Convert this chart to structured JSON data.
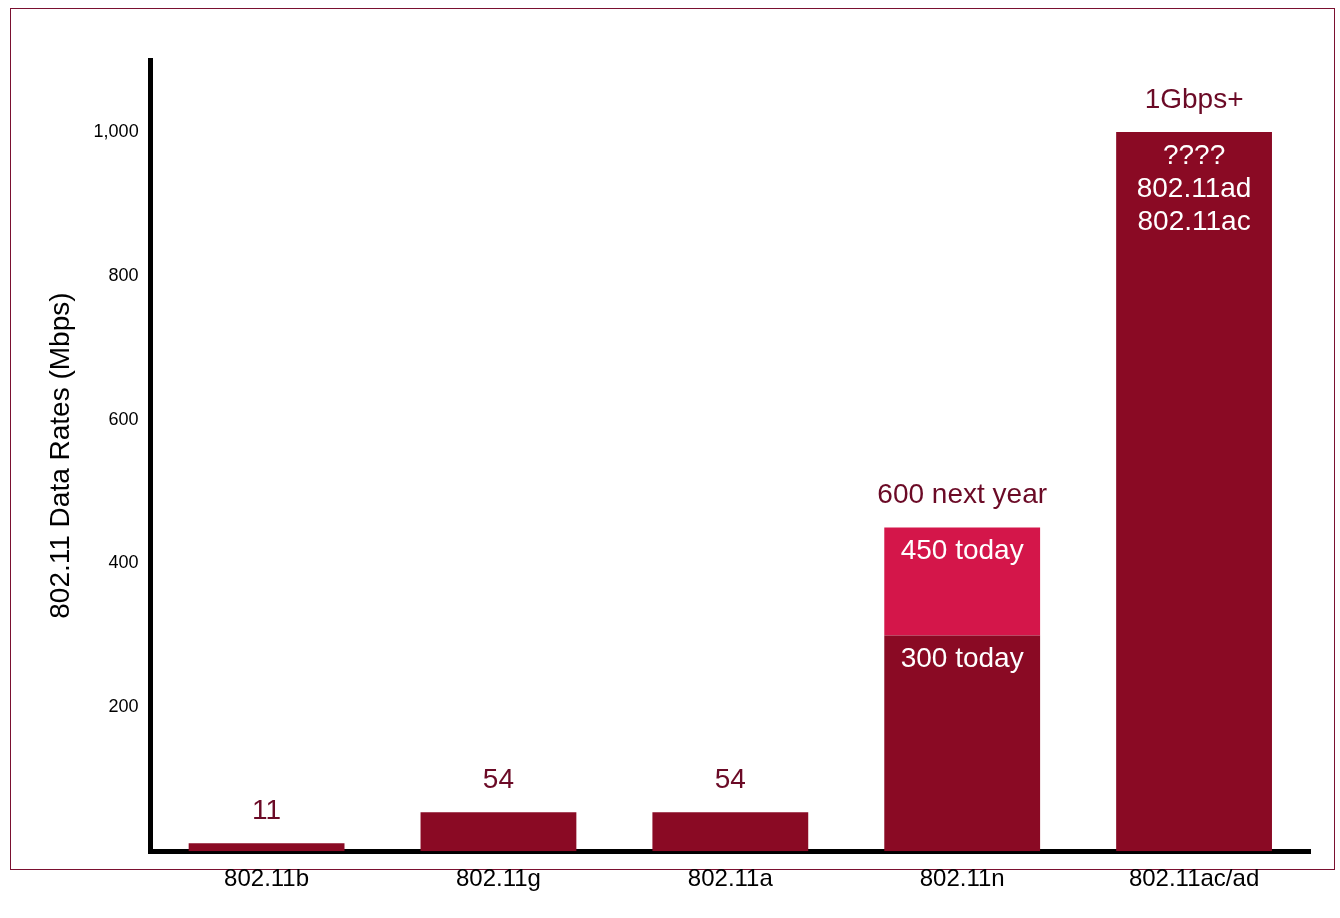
{
  "chart_data": {
    "type": "bar",
    "stacked": true,
    "ylabel": "802.11 Data Rates (Mbps)",
    "categories": [
      "802.11b",
      "802.11g",
      "802.11a",
      "802.11n",
      "802.11ac/ad"
    ],
    "series": [
      {
        "color": "#8a0a24",
        "values": [
          11,
          54,
          54,
          300,
          1000
        ],
        "value_labels": [
          "11",
          "54",
          "54",
          null,
          null
        ]
      },
      {
        "color": "#d4164a",
        "values": [
          null,
          null,
          null,
          150,
          null
        ]
      }
    ],
    "ylim": [
      0,
      1100
    ],
    "yticks": [
      200,
      400,
      600,
      800,
      {
        "value": 1000,
        "label": "1,000"
      }
    ],
    "grid": false,
    "legend": false,
    "annotations": [
      {
        "text": "600 next year",
        "x": "802.11n",
        "y": 450
      },
      {
        "text": "450 today",
        "x": "802.11n",
        "y": 450
      },
      {
        "text": "300 today",
        "x": "802.11n",
        "y": 300
      },
      {
        "text": "1Gbps+",
        "x": "802.11ac/ad",
        "y": 1000
      },
      {
        "text": "????",
        "x": "802.11ac/ad",
        "y": 1000
      },
      {
        "text": "802.11ad",
        "x": "802.11ac/ad",
        "y": 1000
      },
      {
        "text": "802.11ac",
        "x": "802.11ac/ad",
        "y": 1000
      }
    ]
  }
}
